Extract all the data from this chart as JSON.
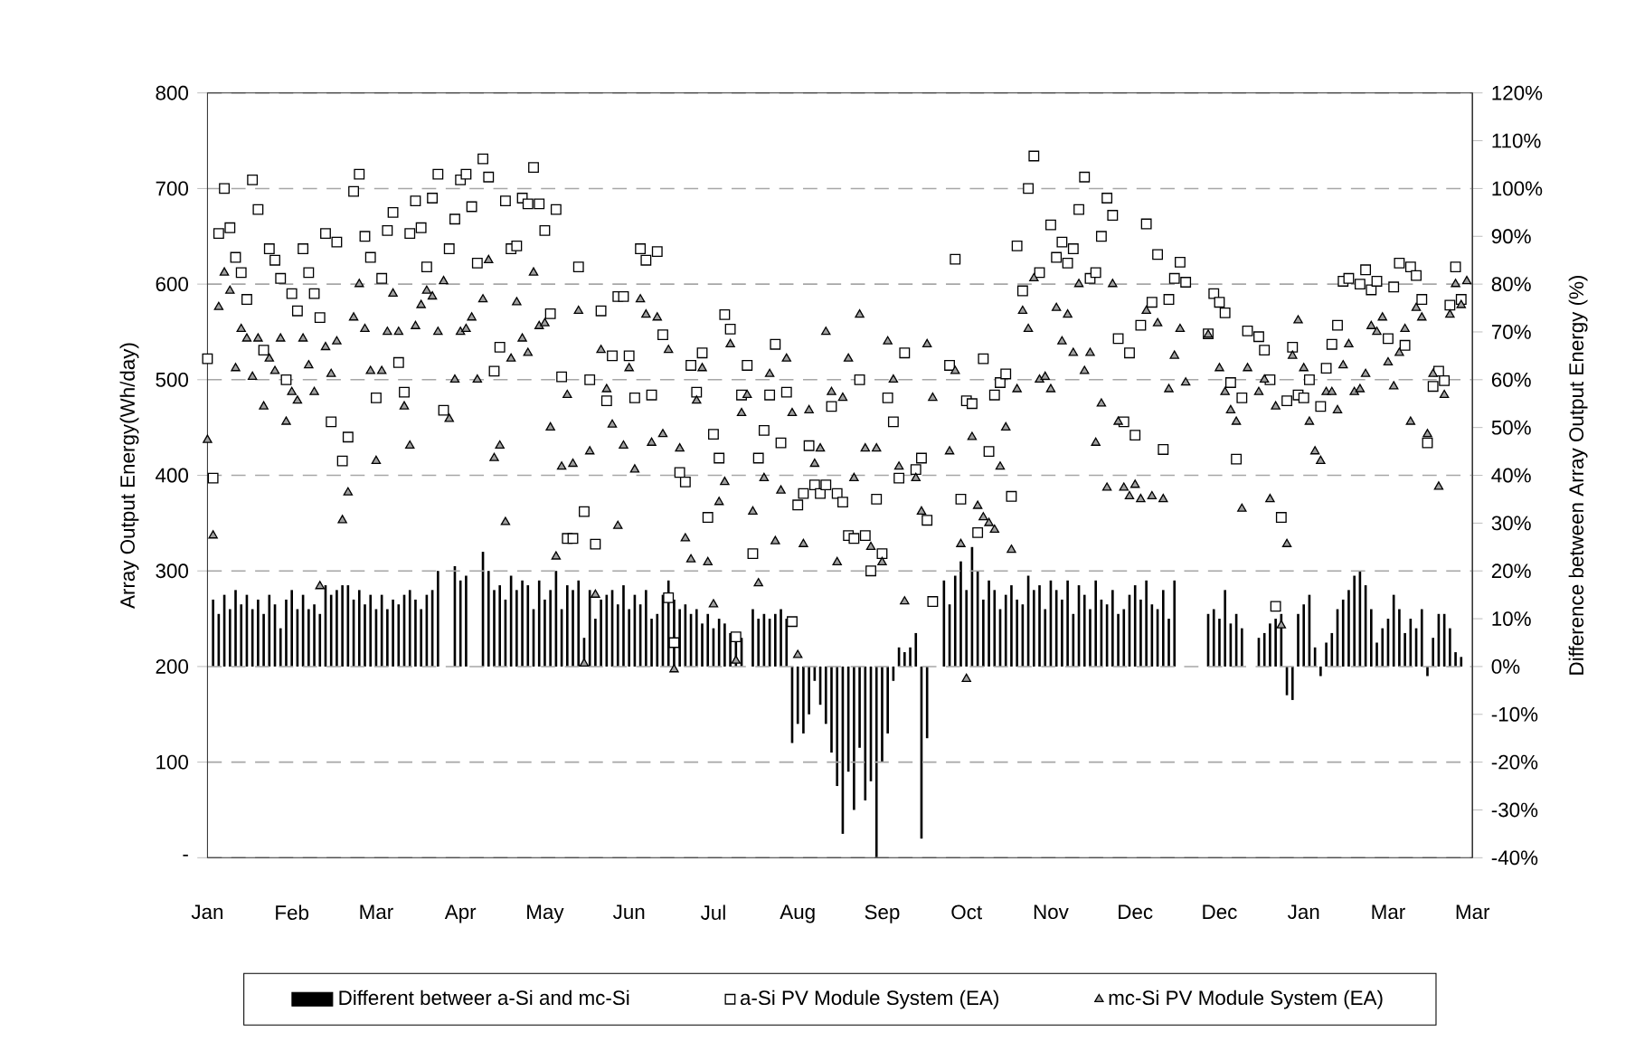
{
  "chart_data": {
    "type": "scatter",
    "ylabel": "Array Output Energy(Wh/day)",
    "y2label": "Difference between Array Output Energy (%)",
    "categories": [
      "Jan",
      null,
      null,
      null,
      null,
      null,
      null,
      null,
      null,
      null,
      null,
      null,
      null,
      null,
      null,
      "Feb",
      null,
      null,
      null,
      null,
      null,
      null,
      null,
      null,
      null,
      null,
      null,
      null,
      null,
      null,
      "Mar",
      null,
      null,
      null,
      null,
      null,
      null,
      null,
      null,
      null,
      null,
      null,
      null,
      null,
      null,
      "Apr",
      null,
      null,
      null,
      null,
      null,
      null,
      null,
      null,
      null,
      null,
      null,
      null,
      null,
      null,
      "May",
      null,
      null,
      null,
      null,
      null,
      null,
      null,
      null,
      null,
      null,
      null,
      null,
      null,
      null,
      "Jun",
      null,
      null,
      null,
      null,
      null,
      null,
      null,
      null,
      null,
      null,
      null,
      null,
      null,
      null,
      "Jul",
      null,
      null,
      null,
      null,
      null,
      null,
      null,
      null,
      null,
      null,
      null,
      null,
      null,
      null,
      "Aug",
      null,
      null,
      null,
      null,
      null,
      null,
      null,
      null,
      null,
      null,
      null,
      null,
      null,
      null,
      "Sep",
      null,
      null,
      null,
      null,
      null,
      null,
      null,
      null,
      null,
      null,
      null,
      null,
      null,
      null,
      "Oct",
      null,
      null,
      null,
      null,
      null,
      null,
      null,
      null,
      null,
      null,
      null,
      null,
      null,
      null,
      "Nov",
      null,
      null,
      null,
      null,
      null,
      null,
      null,
      null,
      null,
      null,
      null,
      null,
      null,
      null,
      "Dec",
      null,
      null,
      null,
      null,
      null,
      null,
      null,
      null,
      null,
      null,
      null,
      null,
      null,
      null,
      "Dec",
      null,
      null,
      null,
      null,
      null,
      null,
      null,
      null,
      null,
      null,
      null,
      null,
      null,
      null,
      "Jan",
      null,
      null,
      null,
      null,
      null,
      null,
      null,
      null,
      null,
      null,
      null,
      null,
      null,
      null,
      "Mar",
      null,
      null,
      null,
      null,
      null,
      null,
      null,
      null,
      null,
      null,
      null,
      null,
      null,
      null,
      "Mar"
    ],
    "ylim": [
      0,
      800
    ],
    "yticks": [
      {
        "value": 0,
        "label": "-"
      },
      100,
      200,
      300,
      400,
      500,
      600,
      700,
      800
    ],
    "y2lim": [
      -40,
      120
    ],
    "y2ticks": [
      {
        "value": -40,
        "label": "-40%"
      },
      {
        "value": -30,
        "label": "-30%"
      },
      {
        "value": -20,
        "label": "-20%"
      },
      {
        "value": -10,
        "label": "-10%"
      },
      {
        "value": 0,
        "label": "0%"
      },
      {
        "value": 10,
        "label": "10%"
      },
      {
        "value": 20,
        "label": "20%"
      },
      {
        "value": 30,
        "label": "30%"
      },
      {
        "value": 40,
        "label": "40%"
      },
      {
        "value": 50,
        "label": "50%"
      },
      {
        "value": 60,
        "label": "60%"
      },
      {
        "value": 70,
        "label": "70%"
      },
      {
        "value": 80,
        "label": "80%"
      },
      {
        "value": 90,
        "label": "90%"
      },
      {
        "value": 100,
        "label": "100%"
      },
      {
        "value": 110,
        "label": "110%"
      },
      {
        "value": 120,
        "label": "120%"
      }
    ],
    "grid": "y",
    "legend": "bottom",
    "series": [
      {
        "name": "Different betweer a-Si and mc-Si",
        "type": "bar",
        "axis": "y2",
        "color": "#000000",
        "values": [
          null,
          14,
          11,
          15,
          12,
          16,
          13,
          15,
          12,
          14,
          11,
          15,
          13,
          8,
          14,
          16,
          12,
          15,
          12,
          13,
          11,
          17,
          15,
          16,
          17,
          17,
          14,
          16,
          13,
          15,
          12,
          15,
          12,
          14,
          13,
          15,
          16,
          14,
          12,
          15,
          16,
          20,
          null,
          null,
          21,
          18,
          19,
          null,
          null,
          24,
          20,
          16,
          17,
          14,
          19,
          16,
          18,
          17,
          12,
          18,
          14,
          16,
          20,
          12,
          17,
          16,
          18,
          6,
          16,
          10,
          14,
          15,
          16,
          13,
          17,
          12,
          15,
          13,
          16,
          10,
          11,
          15,
          18,
          14,
          12,
          13,
          11,
          12,
          9,
          11,
          8,
          10,
          9,
          7,
          6,
          6,
          null,
          12,
          10,
          11,
          10,
          11,
          12,
          10,
          -16,
          -12,
          -14,
          -10,
          -3,
          -8,
          -12,
          -18,
          -25,
          -35,
          -22,
          -30,
          -17,
          -28,
          -24,
          -40,
          -20,
          -14,
          -3,
          4,
          3,
          4,
          7,
          -36,
          -15,
          null,
          null,
          18,
          13,
          19,
          22,
          16,
          25,
          20,
          14,
          18,
          16,
          12,
          15,
          17,
          14,
          13,
          19,
          16,
          17,
          12,
          18,
          16,
          14,
          18,
          11,
          17,
          15,
          12,
          18,
          14,
          13,
          16,
          11,
          12,
          15,
          17,
          14,
          18,
          13,
          12,
          16,
          10,
          18,
          null,
          null,
          null,
          null,
          null,
          11,
          12,
          10,
          16,
          9,
          11,
          8,
          null,
          null,
          6,
          7,
          9,
          10,
          11,
          -6,
          -7,
          11,
          13,
          15,
          4,
          -2,
          5,
          7,
          12,
          14,
          16,
          19,
          20,
          17,
          12,
          5,
          8,
          10,
          15,
          12,
          7,
          10,
          8,
          12,
          -2,
          6,
          11,
          11,
          8,
          3,
          2,
          null,
          null
        ]
      },
      {
        "name": "a-Si PV Module System (EA)",
        "marker": "square",
        "color": "#ffffff",
        "values": [
          522,
          397,
          653,
          700,
          659,
          628,
          612,
          584,
          709,
          678,
          531,
          637,
          625,
          606,
          500,
          590,
          572,
          637,
          612,
          590,
          565,
          653,
          456,
          644,
          415,
          440,
          697,
          715,
          650,
          628,
          481,
          606,
          656,
          675,
          518,
          487,
          653,
          687,
          659,
          618,
          690,
          715,
          468,
          637,
          668,
          709,
          715,
          681,
          622,
          731,
          712,
          509,
          534,
          687,
          637,
          640,
          690,
          684,
          722,
          684,
          656,
          569,
          678,
          503,
          334,
          334,
          618,
          362,
          500,
          328,
          572,
          478,
          525,
          587,
          587,
          525,
          481,
          637,
          625,
          484,
          634,
          547,
          272,
          225,
          403,
          393,
          515,
          487,
          528,
          356,
          443,
          418,
          568,
          553,
          231,
          484,
          515,
          318,
          418,
          447,
          484,
          537,
          434,
          487,
          247,
          369,
          381,
          431,
          390,
          381,
          390,
          472,
          381,
          372,
          337,
          334,
          500,
          337,
          300,
          375,
          318,
          481,
          456,
          397,
          528,
          null,
          406,
          418,
          353,
          268,
          null,
          null,
          515,
          626,
          375,
          478,
          475,
          340,
          522,
          425,
          484,
          497,
          506,
          378,
          640,
          593,
          700,
          734,
          612,
          null,
          662,
          628,
          644,
          622,
          637,
          678,
          712,
          606,
          612,
          650,
          690,
          672,
          543,
          456,
          528,
          442,
          557,
          663,
          581,
          631,
          427,
          584,
          606,
          623,
          602,
          null,
          null,
          null,
          548,
          590,
          581,
          570,
          497,
          417,
          481,
          551,
          null,
          545,
          531,
          500,
          263,
          356,
          478,
          534,
          484,
          481,
          500,
          null,
          472,
          512,
          537,
          557,
          603,
          606,
          null,
          600,
          615,
          594,
          603,
          null,
          543,
          597,
          622,
          536,
          618,
          609,
          584,
          434,
          493,
          509,
          499,
          578,
          618,
          584,
          null,
          null
        ]
      },
      {
        "name": "mc-Si PV Module System (EA)",
        "marker": "triangle",
        "color": "#a0a0a0",
        "values": [
          437,
          337,
          576,
          612,
          593,
          512,
          553,
          543,
          503,
          543,
          472,
          522,
          509,
          543,
          456,
          487,
          478,
          543,
          515,
          487,
          284,
          534,
          506,
          540,
          353,
          382,
          565,
          600,
          553,
          509,
          415,
          509,
          550,
          590,
          550,
          472,
          431,
          556,
          578,
          593,
          587,
          550,
          603,
          459,
          500,
          550,
          553,
          565,
          500,
          584,
          625,
          418,
          431,
          351,
          522,
          581,
          543,
          528,
          612,
          556,
          559,
          450,
          315,
          409,
          484,
          412,
          572,
          203,
          425,
          275,
          531,
          490,
          453,
          347,
          431,
          512,
          406,
          584,
          568,
          434,
          565,
          443,
          531,
          197,
          428,
          334,
          312,
          478,
          512,
          309,
          265,
          372,
          393,
          537,
          206,
          465,
          484,
          362,
          287,
          397,
          506,
          331,
          384,
          522,
          465,
          212,
          328,
          468,
          412,
          428,
          550,
          487,
          309,
          481,
          522,
          397,
          568,
          428,
          325,
          428,
          309,
          540,
          500,
          409,
          268,
          null,
          397,
          362,
          537,
          481,
          null,
          null,
          425,
          509,
          328,
          187,
          440,
          368,
          356,
          350,
          343,
          409,
          450,
          322,
          490,
          572,
          553,
          606,
          500,
          503,
          490,
          575,
          540,
          568,
          528,
          600,
          509,
          528,
          434,
          475,
          387,
          600,
          456,
          387,
          378,
          390,
          375,
          572,
          378,
          559,
          375,
          490,
          525,
          553,
          497,
          null,
          null,
          null,
          547,
          null,
          512,
          487,
          468,
          456,
          365,
          512,
          null,
          487,
          500,
          375,
          472,
          243,
          328,
          525,
          562,
          512,
          456,
          425,
          415,
          487,
          487,
          468,
          515,
          537,
          487,
          490,
          506,
          556,
          550,
          565,
          518,
          493,
          528,
          553,
          456,
          575,
          565,
          443,
          506,
          388,
          484,
          568,
          600,
          578,
          603,
          null
        ]
      }
    ]
  }
}
